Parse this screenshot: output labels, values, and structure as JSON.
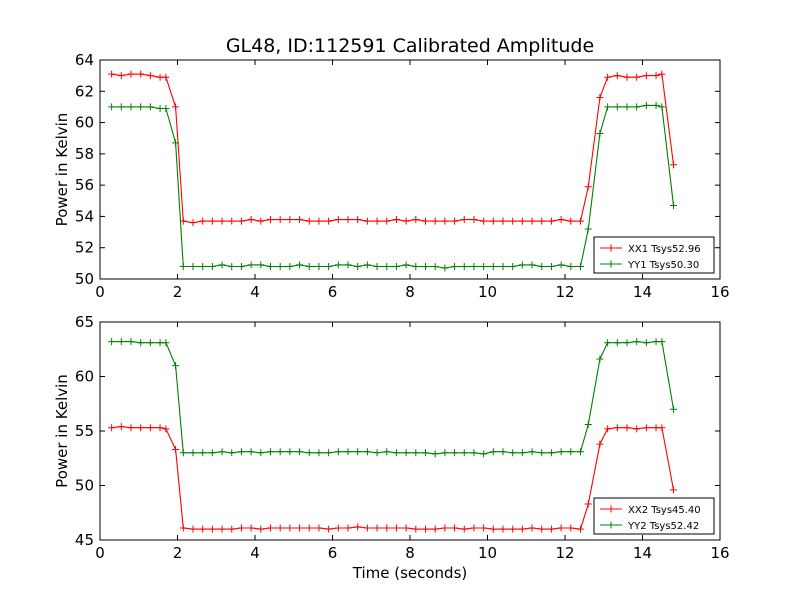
{
  "colors": {
    "xx": "#ff0000",
    "yy": "#008000",
    "axis": "#000000",
    "background": "#ffffff"
  },
  "chart_data": [
    {
      "type": "line",
      "title": "GL48, ID:112591 Calibrated Amplitude",
      "xlabel": "",
      "ylabel": "Power in Kelvin",
      "xlim": [
        0,
        16
      ],
      "ylim": [
        50,
        64
      ],
      "xticks": [
        "0",
        "2",
        "4",
        "6",
        "8",
        "10",
        "12",
        "14",
        "16"
      ],
      "yticks": [
        "50",
        "52",
        "54",
        "56",
        "58",
        "60",
        "62",
        "64"
      ],
      "legend": "bottom-right",
      "x": [
        0.3,
        0.55,
        0.8,
        1.05,
        1.3,
        1.55,
        1.7,
        1.95,
        2.15,
        2.4,
        2.65,
        2.9,
        3.15,
        3.4,
        3.65,
        3.9,
        4.15,
        4.4,
        4.65,
        4.9,
        5.15,
        5.4,
        5.65,
        5.9,
        6.15,
        6.4,
        6.65,
        6.9,
        7.15,
        7.4,
        7.65,
        7.9,
        8.15,
        8.4,
        8.65,
        8.9,
        9.15,
        9.4,
        9.65,
        9.9,
        10.15,
        10.4,
        10.65,
        10.9,
        11.15,
        11.4,
        11.65,
        11.9,
        12.15,
        12.4,
        12.6,
        12.9,
        13.1,
        13.35,
        13.6,
        13.85,
        14.1,
        14.35,
        14.5,
        14.8
      ],
      "series": [
        {
          "name": "XX1 Tsys52.96",
          "color_key": "xx",
          "values": [
            63.1,
            63.0,
            63.1,
            63.1,
            63.0,
            62.9,
            62.9,
            61.0,
            53.7,
            53.6,
            53.7,
            53.7,
            53.7,
            53.7,
            53.7,
            53.8,
            53.7,
            53.8,
            53.8,
            53.8,
            53.8,
            53.7,
            53.7,
            53.7,
            53.8,
            53.8,
            53.8,
            53.7,
            53.7,
            53.7,
            53.8,
            53.7,
            53.8,
            53.7,
            53.7,
            53.7,
            53.7,
            53.8,
            53.8,
            53.7,
            53.7,
            53.7,
            53.7,
            53.7,
            53.7,
            53.7,
            53.7,
            53.8,
            53.7,
            53.7,
            55.9,
            61.6,
            62.9,
            63.0,
            62.9,
            62.9,
            63.0,
            63.0,
            63.1,
            57.3
          ]
        },
        {
          "name": "YY1 Tsys50.30",
          "color_key": "yy",
          "values": [
            61.0,
            61.0,
            61.0,
            61.0,
            61.0,
            60.9,
            60.9,
            58.7,
            50.8,
            50.8,
            50.8,
            50.8,
            50.9,
            50.8,
            50.8,
            50.9,
            50.9,
            50.8,
            50.8,
            50.8,
            50.9,
            50.8,
            50.8,
            50.8,
            50.9,
            50.9,
            50.8,
            50.9,
            50.8,
            50.8,
            50.8,
            50.9,
            50.8,
            50.8,
            50.8,
            50.7,
            50.8,
            50.8,
            50.8,
            50.8,
            50.8,
            50.8,
            50.8,
            50.9,
            50.9,
            50.8,
            50.8,
            50.9,
            50.8,
            50.8,
            53.2,
            59.3,
            61.0,
            61.0,
            61.0,
            61.0,
            61.1,
            61.1,
            61.0,
            54.7
          ]
        }
      ]
    },
    {
      "type": "line",
      "title": "",
      "xlabel": "Time (seconds)",
      "ylabel": "Power in Kelvin",
      "xlim": [
        0,
        16
      ],
      "ylim": [
        45,
        65
      ],
      "xticks": [
        "0",
        "2",
        "4",
        "6",
        "8",
        "10",
        "12",
        "14",
        "16"
      ],
      "yticks": [
        "45",
        "50",
        "55",
        "60",
        "65"
      ],
      "legend": "bottom-right",
      "x": [
        0.3,
        0.55,
        0.8,
        1.05,
        1.3,
        1.55,
        1.7,
        1.95,
        2.15,
        2.4,
        2.65,
        2.9,
        3.15,
        3.4,
        3.65,
        3.9,
        4.15,
        4.4,
        4.65,
        4.9,
        5.15,
        5.4,
        5.65,
        5.9,
        6.15,
        6.4,
        6.65,
        6.9,
        7.15,
        7.4,
        7.65,
        7.9,
        8.15,
        8.4,
        8.65,
        8.9,
        9.15,
        9.4,
        9.65,
        9.9,
        10.15,
        10.4,
        10.65,
        10.9,
        11.15,
        11.4,
        11.65,
        11.9,
        12.15,
        12.4,
        12.6,
        12.9,
        13.1,
        13.35,
        13.6,
        13.85,
        14.1,
        14.35,
        14.5,
        14.8
      ],
      "series": [
        {
          "name": "XX2 Tsys45.40",
          "color_key": "xx",
          "values": [
            55.3,
            55.4,
            55.3,
            55.3,
            55.3,
            55.3,
            55.2,
            53.3,
            46.1,
            46.0,
            46.0,
            46.0,
            46.0,
            46.0,
            46.1,
            46.1,
            46.0,
            46.1,
            46.1,
            46.1,
            46.1,
            46.1,
            46.1,
            46.0,
            46.1,
            46.1,
            46.2,
            46.1,
            46.1,
            46.1,
            46.1,
            46.1,
            46.0,
            46.0,
            46.0,
            46.1,
            46.1,
            46.0,
            46.1,
            46.1,
            46.0,
            46.0,
            46.0,
            46.0,
            46.1,
            46.0,
            46.0,
            46.1,
            46.1,
            46.0,
            48.3,
            53.8,
            55.2,
            55.3,
            55.3,
            55.2,
            55.3,
            55.3,
            55.3,
            49.6
          ]
        },
        {
          "name": "YY2 Tsys52.42",
          "color_key": "yy",
          "values": [
            63.2,
            63.2,
            63.2,
            63.1,
            63.1,
            63.1,
            63.1,
            61.0,
            53.0,
            53.0,
            53.0,
            53.0,
            53.1,
            53.0,
            53.1,
            53.1,
            53.0,
            53.1,
            53.1,
            53.1,
            53.1,
            53.0,
            53.0,
            53.0,
            53.1,
            53.1,
            53.1,
            53.1,
            53.0,
            53.1,
            53.0,
            53.0,
            53.0,
            53.0,
            52.9,
            53.0,
            53.0,
            53.0,
            53.0,
            52.9,
            53.1,
            53.1,
            53.0,
            53.0,
            53.1,
            53.0,
            53.0,
            53.1,
            53.1,
            53.1,
            55.6,
            61.6,
            63.1,
            63.1,
            63.1,
            63.2,
            63.1,
            63.2,
            63.2,
            57.0
          ]
        }
      ]
    }
  ]
}
